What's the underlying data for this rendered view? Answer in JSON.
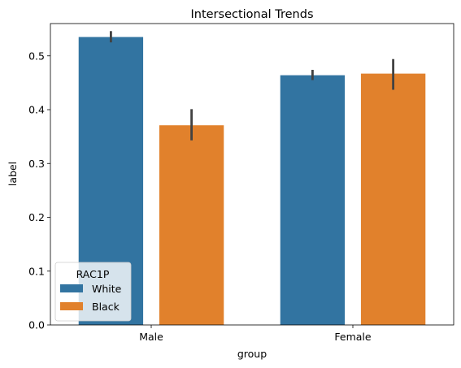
{
  "chart_data": {
    "type": "bar",
    "title": "Intersectional Trends",
    "xlabel": "group",
    "ylabel": "label",
    "categories": [
      "Male",
      "Female"
    ],
    "ylim": [
      0,
      0.56
    ],
    "yticks": [
      "0.0",
      "0.1",
      "0.2",
      "0.3",
      "0.4",
      "0.5"
    ],
    "grid": false,
    "legend": {
      "title": "RAC1P",
      "placement": "lower-left"
    },
    "series": [
      {
        "name": "White",
        "color": "#3274a1",
        "values": [
          0.535,
          0.464
        ],
        "error_low": [
          0.525,
          0.455
        ],
        "error_high": [
          0.546,
          0.474
        ]
      },
      {
        "name": "Black",
        "color": "#e1812c",
        "values": [
          0.371,
          0.467
        ],
        "error_low": [
          0.343,
          0.437
        ],
        "error_high": [
          0.401,
          0.494
        ]
      }
    ]
  }
}
